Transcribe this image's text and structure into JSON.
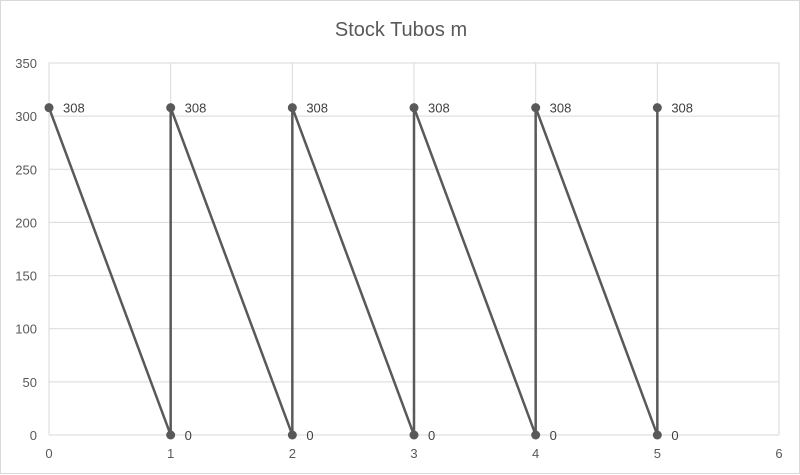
{
  "chart_data": {
    "type": "scatter",
    "title": "Stock Tubos m",
    "xlabel": "",
    "ylabel": "",
    "xlim": [
      0,
      6
    ],
    "ylim": [
      0,
      350
    ],
    "x_ticks": [
      0,
      1,
      2,
      3,
      4,
      5,
      6
    ],
    "y_ticks": [
      0,
      50,
      100,
      150,
      200,
      250,
      300,
      350
    ],
    "grid": "both",
    "legend": "none",
    "series": [
      {
        "color": "#595959",
        "points": [
          {
            "x": 0,
            "y": 308,
            "label": "308"
          },
          {
            "x": 1,
            "y": 0,
            "label": "0"
          },
          {
            "x": 1,
            "y": 308,
            "label": "308"
          },
          {
            "x": 2,
            "y": 0,
            "label": "0"
          },
          {
            "x": 2,
            "y": 308,
            "label": "308"
          },
          {
            "x": 3,
            "y": 0,
            "label": "0"
          },
          {
            "x": 3,
            "y": 308,
            "label": "308"
          },
          {
            "x": 4,
            "y": 0,
            "label": "0"
          },
          {
            "x": 4,
            "y": 308,
            "label": "308"
          },
          {
            "x": 5,
            "y": 0,
            "label": "0"
          },
          {
            "x": 5,
            "y": 308,
            "label": "308"
          }
        ]
      }
    ]
  }
}
